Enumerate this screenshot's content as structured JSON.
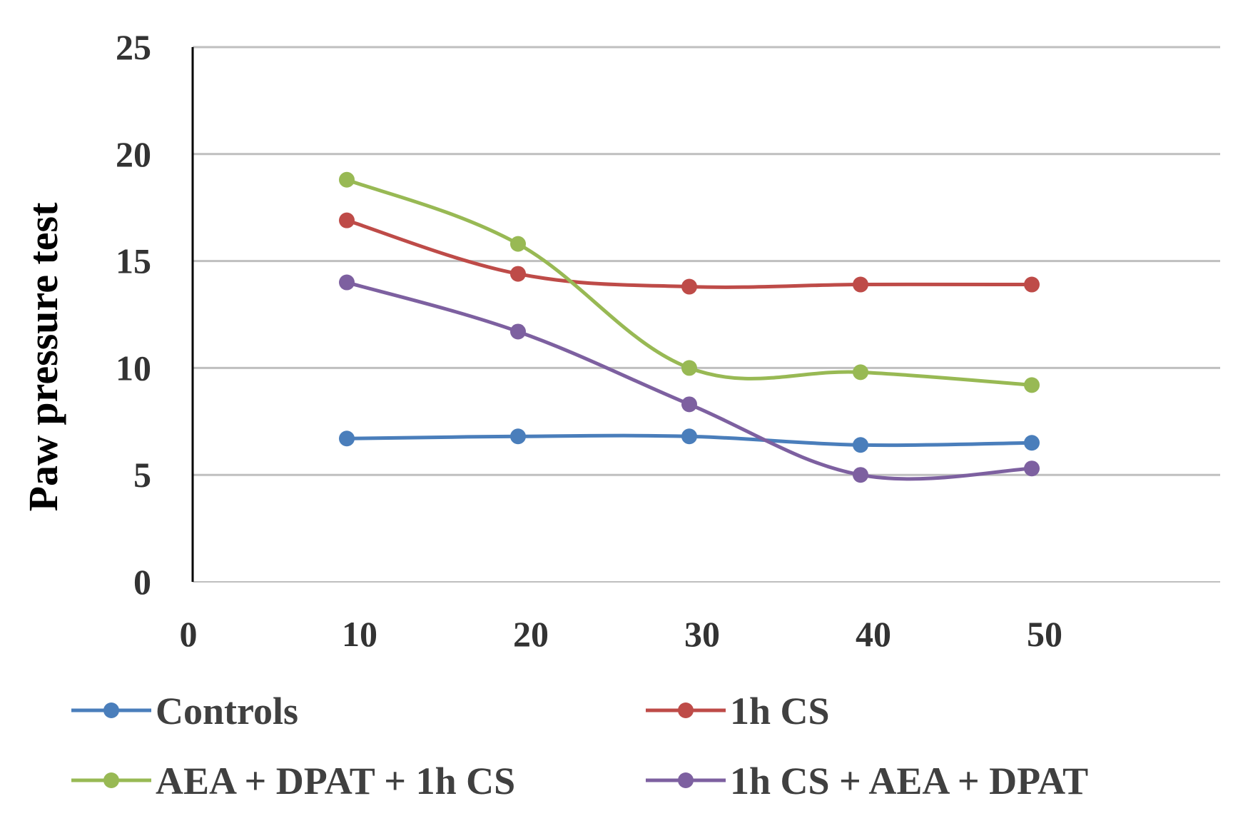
{
  "chart_data": {
    "type": "line",
    "title": "",
    "xlabel": "",
    "ylabel": "Paw pressure test",
    "xlim": [
      0,
      60
    ],
    "ylim": [
      0,
      25
    ],
    "x_ticks": [
      "0",
      "10",
      "20",
      "30",
      "40",
      "50"
    ],
    "y_ticks": [
      "0",
      "5",
      "10",
      "15",
      "20",
      "25"
    ],
    "grid": "horizontal",
    "legend_position": "bottom",
    "x": [
      9,
      19,
      29,
      39,
      49
    ],
    "series": [
      {
        "name": "Controls",
        "color": "#4a7ebb",
        "values": [
          6.7,
          6.8,
          6.8,
          6.4,
          6.5
        ]
      },
      {
        "name": "1h CS",
        "color": "#be4b48",
        "values": [
          16.9,
          14.4,
          13.8,
          13.9,
          13.9
        ]
      },
      {
        "name": "AEA + DPAT + 1h CS",
        "color": "#98b954",
        "values": [
          18.8,
          15.8,
          10.0,
          9.8,
          9.2
        ]
      },
      {
        "name": "1h CS + AEA + DPAT",
        "color": "#7d60a0",
        "values": [
          14.0,
          11.7,
          8.3,
          5.0,
          5.3
        ]
      }
    ]
  }
}
